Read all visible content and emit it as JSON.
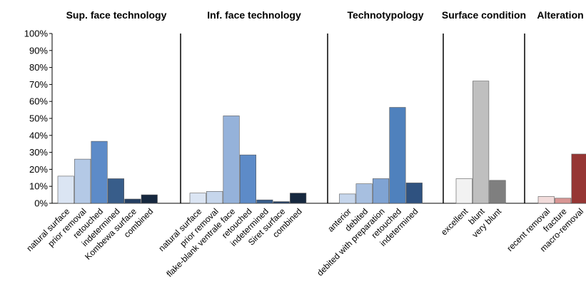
{
  "chart_data": {
    "type": "bar",
    "ylim": [
      0,
      100
    ],
    "ytick_values": [
      0,
      10,
      20,
      30,
      40,
      50,
      60,
      70,
      80,
      90,
      100
    ],
    "ytick_labels": [
      "0%",
      "10%",
      "20%",
      "30%",
      "40%",
      "50%",
      "60%",
      "70%",
      "80%",
      "90%",
      "100%"
    ],
    "grid": false,
    "legend": "none",
    "panels": [
      {
        "title": "Sup. face technology",
        "categories": [
          "natural surface",
          "prior removal",
          "retouched",
          "indetermined",
          "Kombewa surface",
          "combined"
        ],
        "values": [
          16,
          26,
          36.5,
          14.5,
          2.5,
          5
        ],
        "colors": [
          "#dbe5f3",
          "#b4c9e6",
          "#5d8bc8",
          "#385d8a",
          "#243f62",
          "#16283f"
        ]
      },
      {
        "title": "Inf. face technology",
        "categories": [
          "natural surface",
          "prior removal",
          "flake-blank ventrale face",
          "retouched",
          "indetermined",
          "Siret surface",
          "combined"
        ],
        "values": [
          6,
          7,
          51.5,
          28.5,
          2,
          1,
          6
        ],
        "colors": [
          "#dbe5f3",
          "#c6d6ec",
          "#95b2da",
          "#5d8bc8",
          "#385d8a",
          "#243f62",
          "#16283f"
        ]
      },
      {
        "title": "Technotypology",
        "categories": [
          "anterior",
          "debited",
          "debited with preparation",
          "retouched",
          "indetermined"
        ],
        "values": [
          5.5,
          11.5,
          14.5,
          56.5,
          12
        ],
        "colors": [
          "#c6d6ec",
          "#a7bfe0",
          "#7fa3d3",
          "#4f81bd",
          "#2f5280"
        ]
      },
      {
        "title": "Surface condition",
        "categories": [
          "excellent",
          "blunt",
          "very blunt"
        ],
        "values": [
          14.5,
          72,
          13.5
        ],
        "colors": [
          "#f2f2f2",
          "#bfbfbf",
          "#7f7f7f"
        ]
      },
      {
        "title": "Alteration",
        "categories": [
          "recent removal",
          "fracture",
          "macro-removal"
        ],
        "values": [
          4,
          3,
          29
        ],
        "colors": [
          "#f2dcdb",
          "#d99694",
          "#963634"
        ]
      }
    ]
  }
}
